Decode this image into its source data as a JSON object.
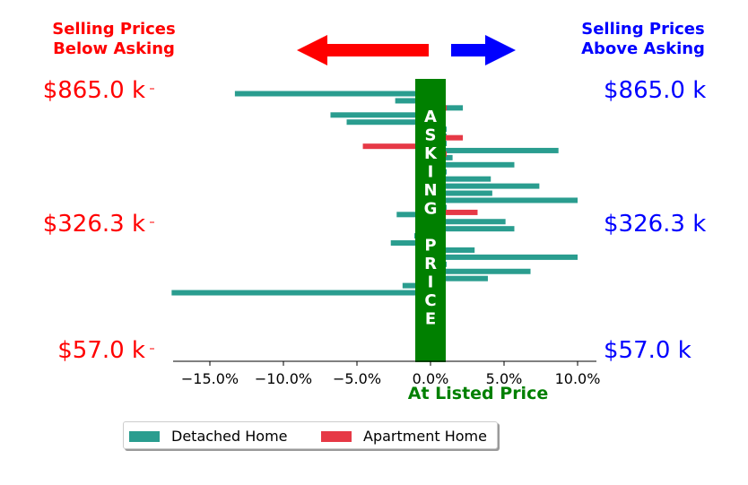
{
  "header": {
    "left_title_line1": "Selling Prices",
    "left_title_line2": "Below Asking",
    "right_title_line1": "Selling Prices",
    "right_title_line2": "Above Asking"
  },
  "band_label_top": "ASKING",
  "band_label_bottom": "PRICE",
  "colors": {
    "detached": "#2a9d8f",
    "apartment": "#e63946",
    "band": "#008000",
    "left_text": "#ff0000",
    "right_text": "#0000ff",
    "left_arrow": "#ff0000",
    "right_arrow": "#0000ff"
  },
  "legend": {
    "detached_label": "Detached Home",
    "apartment_label": "Apartment Home"
  },
  "chart_data": {
    "type": "bar",
    "orientation": "horizontal",
    "title": "",
    "xlabel": "At Listed Price",
    "xlim": [
      -18.5,
      11.5
    ],
    "x_ticks": [
      -15,
      -10,
      -5,
      0,
      5,
      10
    ],
    "x_tick_labels": [
      "−15.0%",
      "−10.0%",
      "−5.0%",
      "0.0%",
      "5.0%",
      "10.0%"
    ],
    "y_tick_labels_left": [
      "$865.0 k",
      "$326.3 k",
      "$57.0 k"
    ],
    "y_tick_labels_right": [
      "$865.0 k",
      "$326.3 k",
      "$57.0 k"
    ],
    "grid": false,
    "legend_position": "bottom-left",
    "series": [
      {
        "name": "Detached Home",
        "color": "#2a9d8f",
        "values": [
          -13.3,
          -2.4,
          2.2,
          -6.8,
          -5.7,
          1.1,
          1.1,
          1.1,
          8.7,
          1.5,
          5.7,
          1.1,
          4.1,
          7.4,
          4.2,
          10.0,
          1.1,
          -2.3,
          5.1,
          5.7,
          -1.1,
          -2.7,
          3.0,
          10.0,
          1.1,
          6.8,
          3.9,
          -1.9,
          -17.6
        ]
      },
      {
        "name": "Apartment Home",
        "color": "#e63946",
        "values": [
          1.1,
          2.2,
          -4.6,
          1.1,
          3.2
        ]
      }
    ]
  }
}
